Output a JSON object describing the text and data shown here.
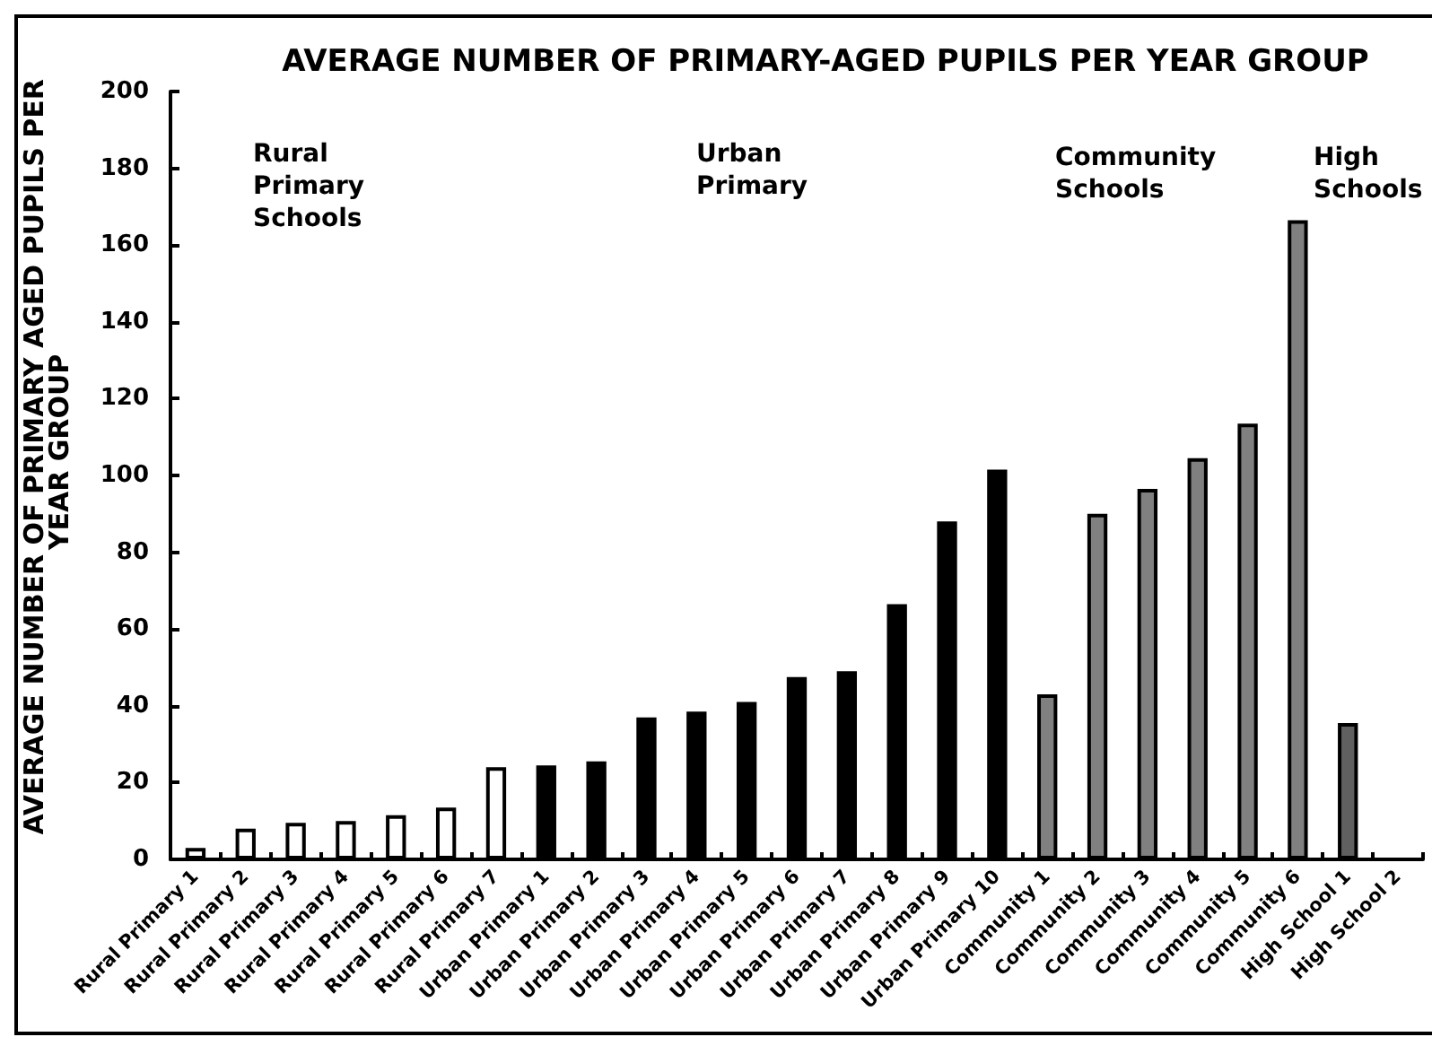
{
  "chart_data": {
    "type": "bar",
    "title": "AVERAGE NUMBER OF PRIMARY-AGED PUPILS PER YEAR GROUP",
    "ylabel": "AVERAGE NUMBER OF PRIMARY AGED PUPILS PER YEAR GROUP",
    "categories": [
      "Rural Primary 1",
      "Rural Primary 2",
      "Rural Primary 3",
      "Rural Primary 4",
      "Rural Primary 5",
      "Rural Primary 6",
      "Rural Primary 7",
      "Urban Primary 1",
      "Urban Primary 2",
      "Urban Primary 3",
      "Urban Primary 4",
      "Urban Primary 5",
      "Urban Primary 6",
      "Urban Primary 7",
      "Urban Primary 8",
      "Urban Primary 9",
      "Urban Primary 10",
      "Community 1",
      "Community 2",
      "Community 3",
      "Community 4",
      "Community 5",
      "Community 6",
      "High School 1",
      "High School 2"
    ],
    "values": [
      3,
      8,
      9.5,
      10,
      11.5,
      13.5,
      24,
      24.5,
      25.5,
      37,
      38.5,
      41,
      47.5,
      49,
      66.5,
      88,
      101.5,
      43,
      90,
      96.5,
      104.5,
      113.5,
      166.5,
      35.5,
      null
    ],
    "colors": [
      "#ffffff",
      "#ffffff",
      "#ffffff",
      "#ffffff",
      "#ffffff",
      "#ffffff",
      "#ffffff",
      "#000000",
      "#000000",
      "#000000",
      "#000000",
      "#000000",
      "#000000",
      "#000000",
      "#000000",
      "#000000",
      "#000000",
      "#808080",
      "#808080",
      "#808080",
      "#808080",
      "#808080",
      "#808080",
      "#606060",
      "#606060"
    ],
    "ylim": [
      0,
      200
    ],
    "yticks": [
      0,
      20,
      40,
      60,
      80,
      100,
      120,
      140,
      160,
      180,
      200
    ],
    "grid": false,
    "annotations": [
      "Rural Primary Schools",
      "Urban Primary",
      "Community Schools",
      "High Schools"
    ]
  }
}
